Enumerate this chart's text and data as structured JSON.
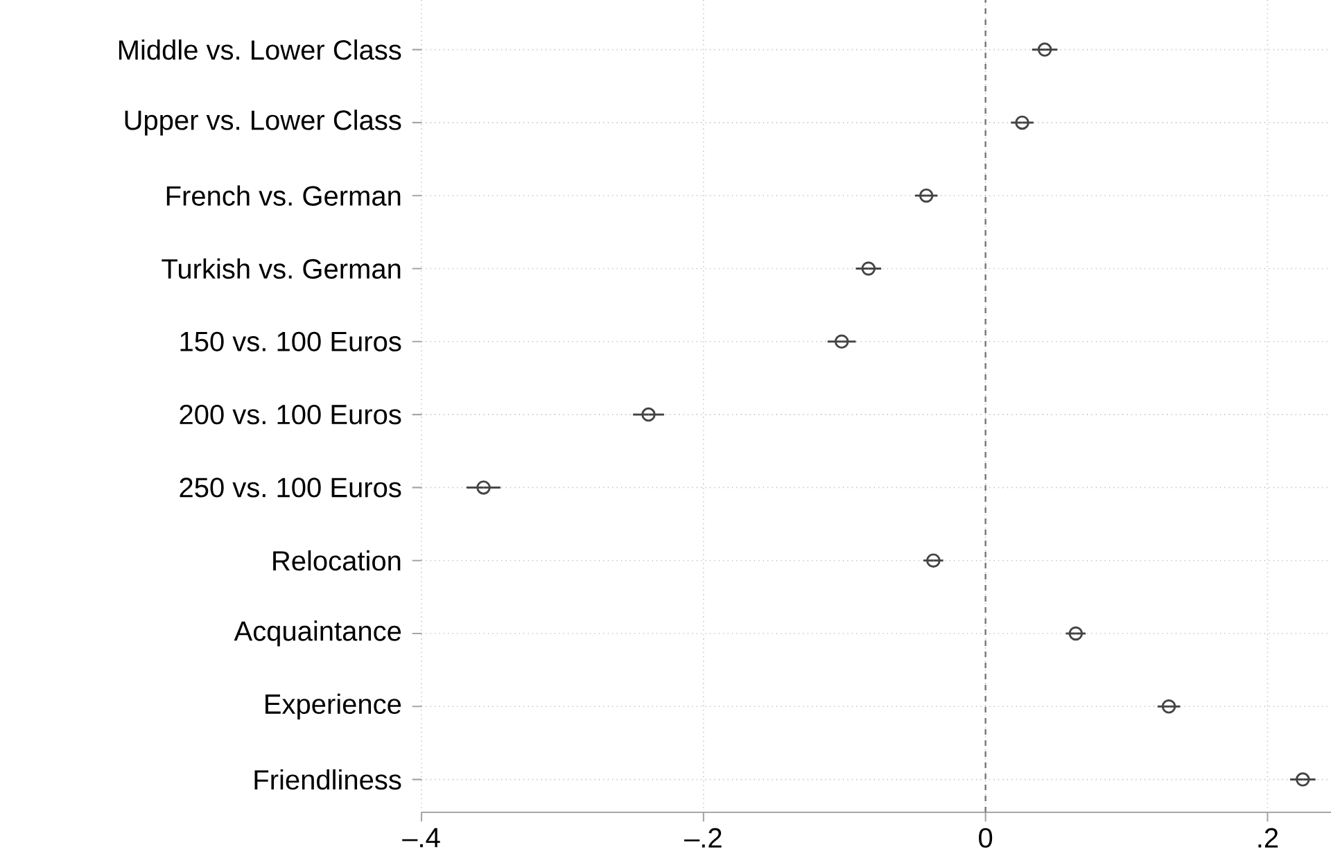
{
  "chart_data": {
    "type": "scatter",
    "orientation": "horizontal",
    "categories": [
      "Middle vs. Lower Class",
      "Upper vs. Lower Class",
      "French vs. German",
      "Turkish vs. German",
      "150 vs. 100 Euros",
      "200 vs. 100 Euros",
      "250 vs. 100 Euros",
      "Relocation",
      "Acquaintance",
      "Experience",
      "Friendliness"
    ],
    "values": [
      0.042,
      0.026,
      -0.042,
      -0.083,
      -0.102,
      -0.239,
      -0.356,
      -0.037,
      0.064,
      0.13,
      0.225
    ],
    "errors": [
      0.009,
      0.008,
      0.008,
      0.009,
      0.01,
      0.011,
      0.012,
      0.007,
      0.007,
      0.008,
      0.009
    ],
    "color": "#444444",
    "marker": "circle",
    "xlim": [
      -0.4,
      0.245
    ],
    "xticks": [
      {
        "value": -0.4,
        "label": "–.4"
      },
      {
        "value": -0.2,
        "label": "–.2"
      },
      0,
      {
        "value": 0.2,
        "label": ".2"
      }
    ],
    "grid": true,
    "ref_lines": [
      {
        "axis": "x",
        "value": 0,
        "line_style": "dashed",
        "color": "#777777"
      }
    ]
  }
}
